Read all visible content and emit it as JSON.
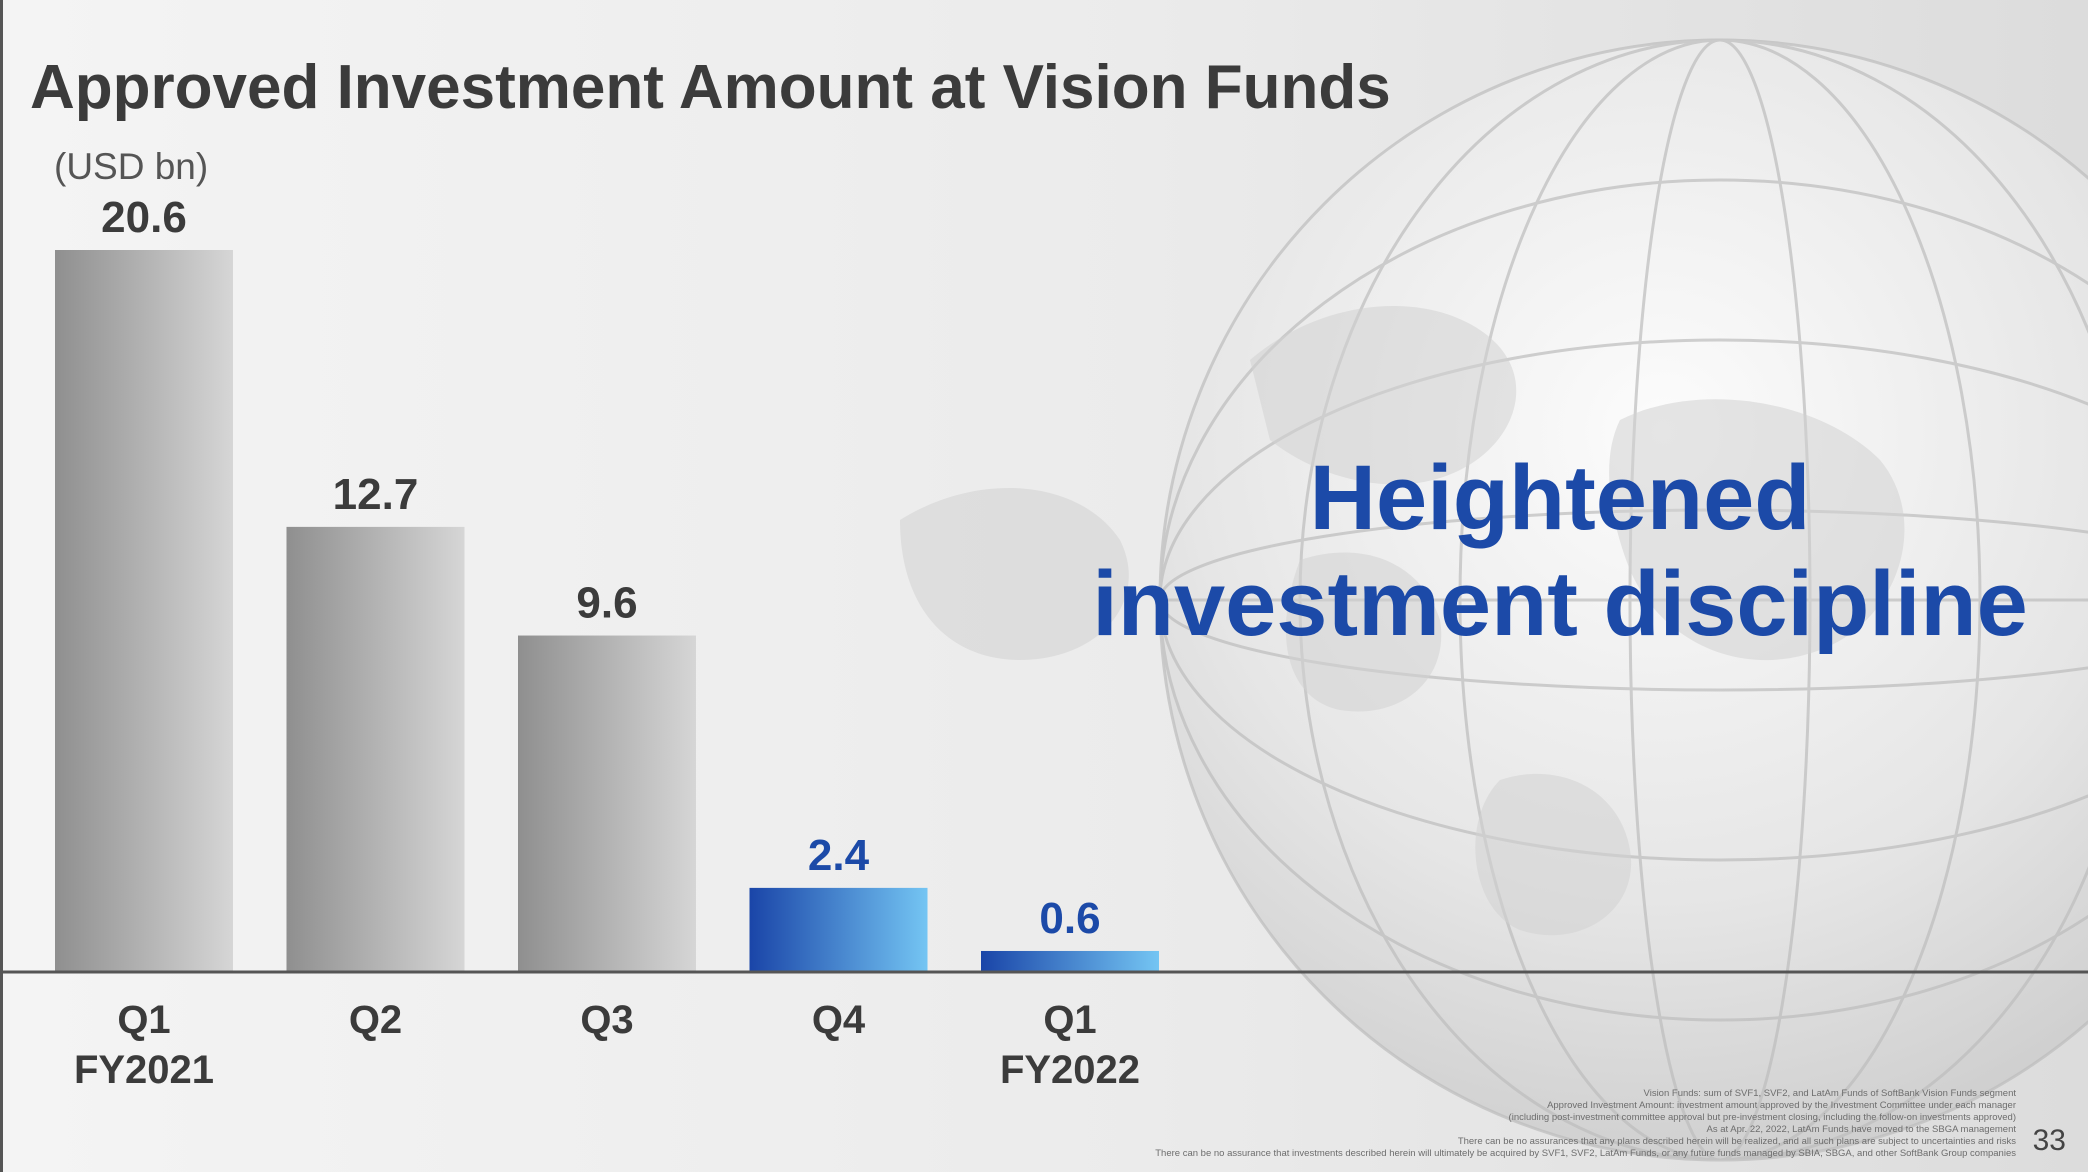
{
  "title": "Approved Investment Amount at Vision Funds",
  "unit": "(USD bn)",
  "headline": {
    "line1": "Heightened",
    "line2": "investment discipline"
  },
  "footnotes": [
    "Vision Funds: sum of SVF1, SVF2, and LatAm Funds of SoftBank Vision Funds segment",
    "Approved Investment Amount: investment amount approved by the Investment Committee under each manager",
    "(including post-investment committee approval but pre-investment closing, including the follow-on investments approved)",
    "As at Apr. 22, 2022, LatAm Funds have moved to the SBGA management",
    "There can be no assurances that any plans described herein will be realized, and all such plans are subject to uncertainties and risks",
    "There can be no assurance that investments described herein will ultimately be acquired by SVF1, SVF2, LatAm Funds, or any future funds managed by SBIA, SBGA, and other SoftBank Group companies"
  ],
  "page_number": "33",
  "colors": {
    "gray_bar_dark": "#8f8f8f",
    "gray_bar_light": "#d6d6d6",
    "blue_bar_dark": "#1a45a8",
    "blue_bar_light": "#74c5f3",
    "gray_label": "#3b3b3b",
    "blue_label": "#1c4aa8",
    "headline": "#1c4aa8"
  },
  "chart_data": {
    "type": "bar",
    "categories": [
      "Q1\nFY2021",
      "Q2",
      "Q3",
      "Q4",
      "Q1\nFY2022"
    ],
    "category_lines": [
      [
        "Q1",
        "FY2021"
      ],
      [
        "Q2"
      ],
      [
        "Q3"
      ],
      [
        "Q4"
      ],
      [
        "Q1",
        "FY2022"
      ]
    ],
    "values": [
      20.6,
      12.7,
      9.6,
      2.4,
      0.6
    ],
    "value_labels": [
      "20.6",
      "12.7",
      "9.6",
      "2.4",
      "0.6"
    ],
    "highlight": [
      false,
      false,
      false,
      true,
      true
    ],
    "title": "Approved Investment Amount at Vision Funds",
    "ylabel": "(USD bn)",
    "ylim": [
      0,
      20.6
    ],
    "grid": false,
    "legend": "none"
  }
}
